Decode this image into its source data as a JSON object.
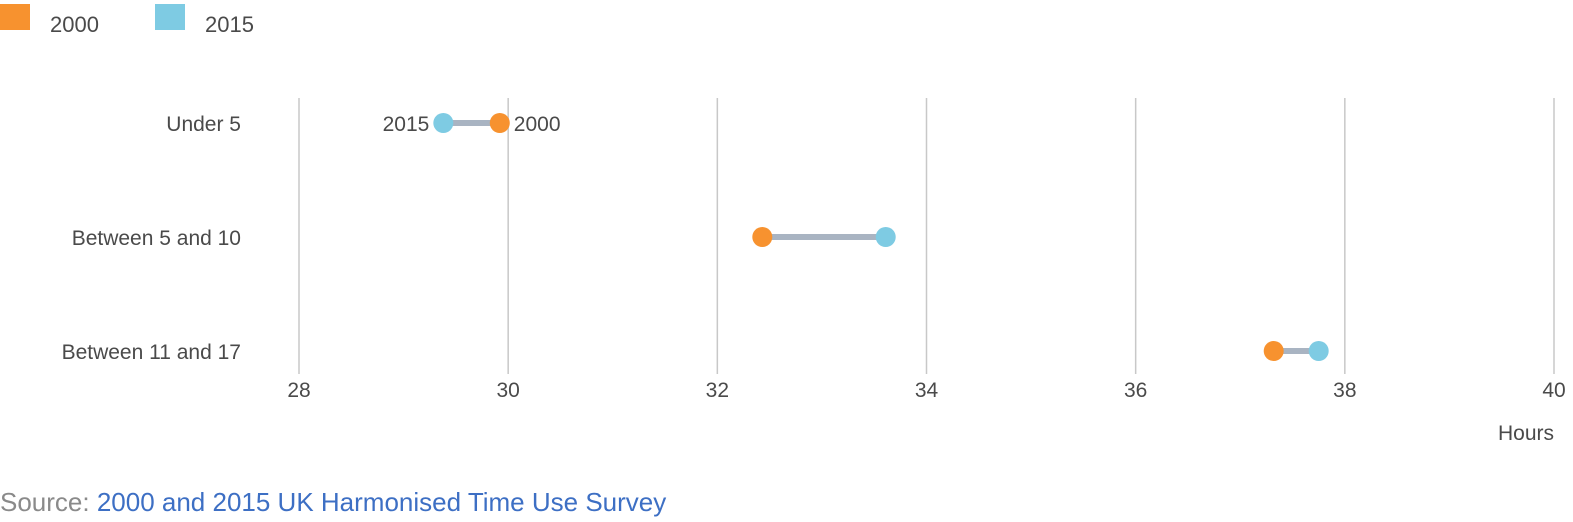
{
  "legend": {
    "items": [
      {
        "label": "2000",
        "color": "#f7922f"
      },
      {
        "label": "2015",
        "color": "#7ecbe3"
      }
    ]
  },
  "chart_data": {
    "type": "dumbbell",
    "categories": [
      "Under 5",
      "Between 5 and 10",
      "Between 11 and 17"
    ],
    "series": [
      {
        "name": "2000",
        "color": "#f7922f",
        "values": [
          29.92,
          32.43,
          37.32
        ]
      },
      {
        "name": "2015",
        "color": "#7ecbe3",
        "values": [
          29.38,
          33.61,
          37.75
        ]
      }
    ],
    "xlim": [
      28,
      40
    ],
    "xticks": [
      28,
      30,
      32,
      34,
      36,
      38,
      40
    ],
    "xlabel": "Hours",
    "grid": true,
    "connector_color": "#a9b4c2",
    "point_labels": {
      "category": "Under 5",
      "left": "2015",
      "right": "2000"
    }
  },
  "source": {
    "prefix": "Source: ",
    "link_text": "2000 and 2015 UK Harmonised Time Use Survey"
  }
}
